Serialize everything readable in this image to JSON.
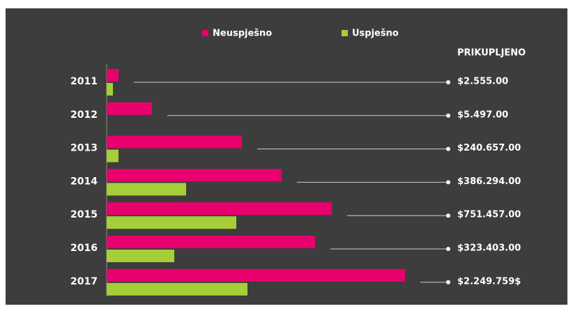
{
  "chart_data": {
    "type": "hbar",
    "categories": [
      "2011",
      "2012",
      "2013",
      "2014",
      "2015",
      "2016",
      "2017"
    ],
    "series": [
      {
        "name": "Neuspješno",
        "color": "#e8006d",
        "values": [
          17,
          65,
          194,
          251,
          323,
          299,
          428
        ]
      },
      {
        "name": "Uspješno",
        "color": "#a6ce39",
        "values": [
          9,
          0,
          17,
          114,
          186,
          97,
          202
        ]
      }
    ],
    "xlim": [
      0,
      500
    ],
    "total_label": "PRIKUPLJENO",
    "totals": [
      "$2.555.00",
      "$5.497.00",
      "$240.657.00",
      "$386.294.00",
      "$751.457.00",
      "$323.403.00",
      "$2.249.759$"
    ]
  }
}
